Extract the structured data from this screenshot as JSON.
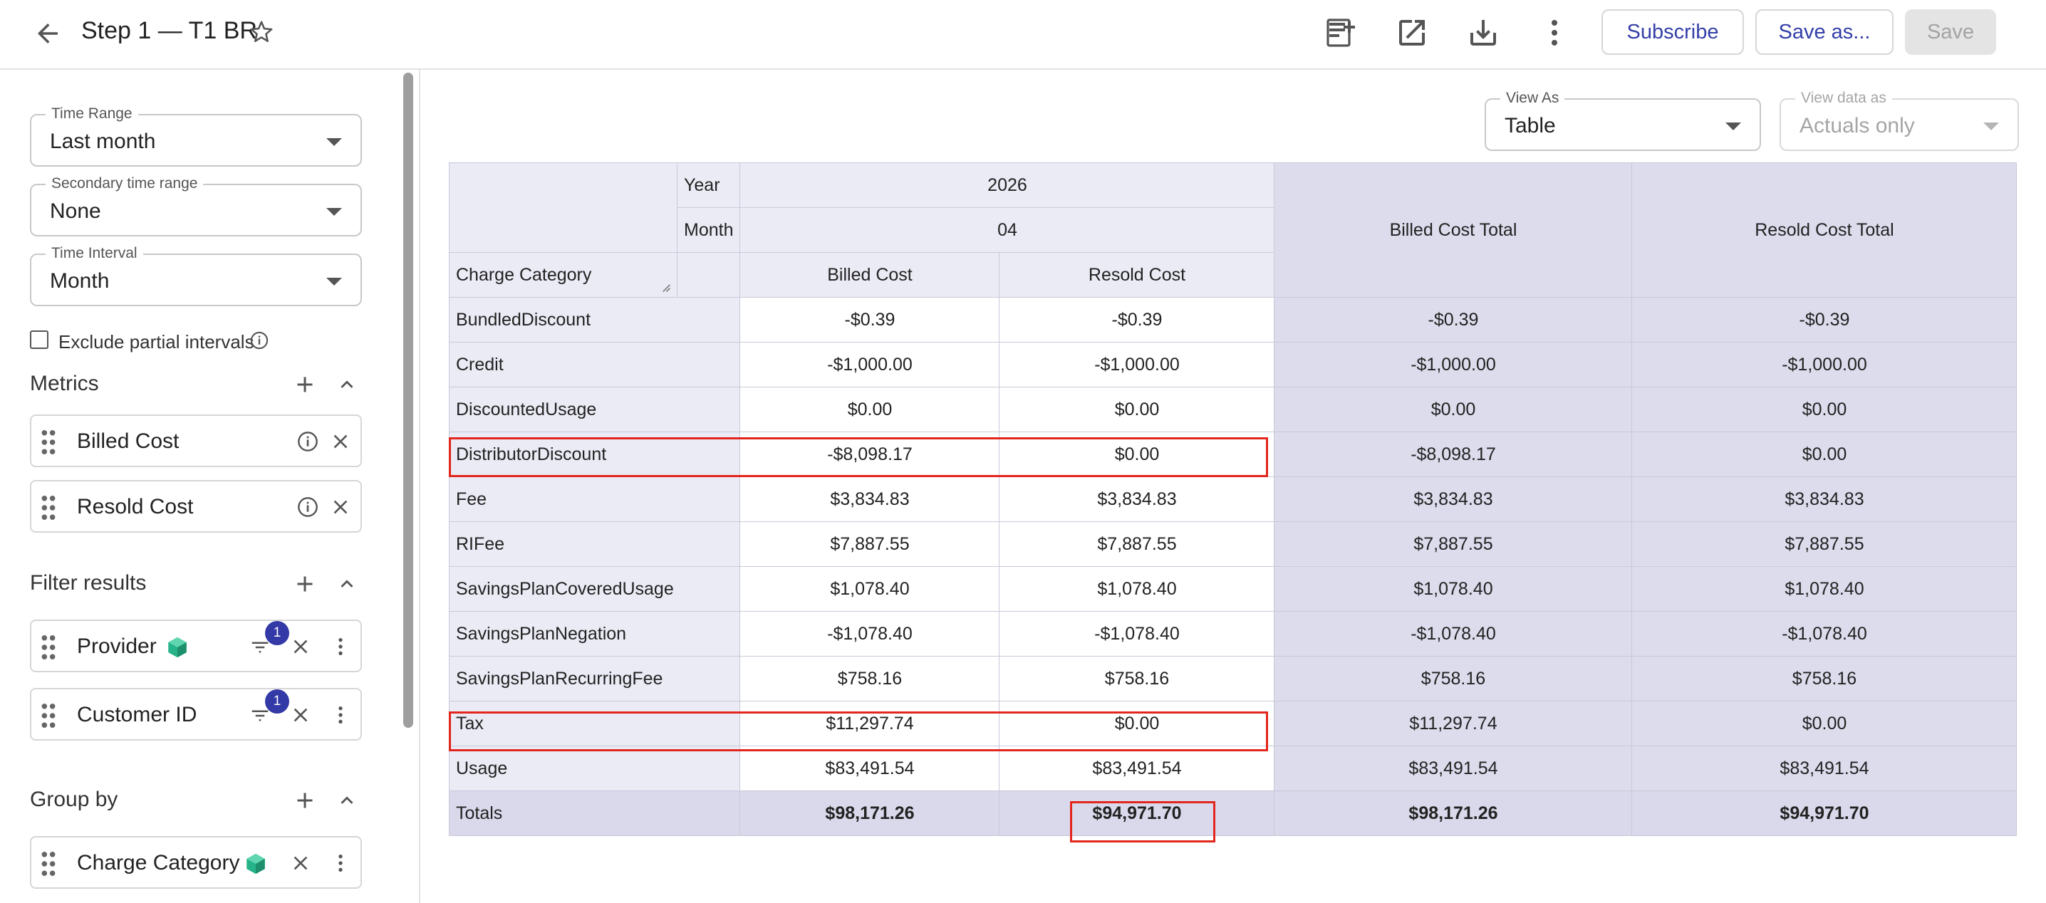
{
  "header": {
    "title": "Step 1 — T1 BR",
    "subscribe_label": "Subscribe",
    "save_as_label": "Save as...",
    "save_label": "Save"
  },
  "filters": {
    "time_range": {
      "label": "Time Range",
      "value": "Last month"
    },
    "secondary_time_range": {
      "label": "Secondary time range",
      "value": "None"
    },
    "time_interval": {
      "label": "Time Interval",
      "value": "Month"
    },
    "exclude_partial_label": "Exclude partial intervals"
  },
  "metrics": {
    "title": "Metrics",
    "items": [
      {
        "label": "Billed Cost"
      },
      {
        "label": "Resold Cost"
      }
    ]
  },
  "filter_results": {
    "title": "Filter results",
    "items": [
      {
        "label": "Provider",
        "count": "1"
      },
      {
        "label": "Customer ID",
        "count": "1"
      }
    ]
  },
  "group_by": {
    "title": "Group by",
    "items": [
      {
        "label": "Charge Category"
      }
    ]
  },
  "view": {
    "view_as": {
      "label": "View As",
      "value": "Table"
    },
    "view_data_as": {
      "label": "View data as",
      "value": "Actuals only"
    }
  },
  "table": {
    "year_label": "Year",
    "year": "2026",
    "month_label": "Month",
    "month": "04",
    "row_header": "Charge Category",
    "col_billed": "Billed Cost",
    "col_resold": "Resold Cost",
    "total_billed": "Billed Cost Total",
    "total_resold": "Resold Cost Total",
    "rows": [
      {
        "category": "BundledDiscount",
        "billed": "-$0.39",
        "resold": "-$0.39",
        "billed_total": "-$0.39",
        "resold_total": "-$0.39"
      },
      {
        "category": "Credit",
        "billed": "-$1,000.00",
        "resold": "-$1,000.00",
        "billed_total": "-$1,000.00",
        "resold_total": "-$1,000.00"
      },
      {
        "category": "DiscountedUsage",
        "billed": "$0.00",
        "resold": "$0.00",
        "billed_total": "$0.00",
        "resold_total": "$0.00"
      },
      {
        "category": "DistributorDiscount",
        "billed": "-$8,098.17",
        "resold": "$0.00",
        "billed_total": "-$8,098.17",
        "resold_total": "$0.00"
      },
      {
        "category": "Fee",
        "billed": "$3,834.83",
        "resold": "$3,834.83",
        "billed_total": "$3,834.83",
        "resold_total": "$3,834.83"
      },
      {
        "category": "RIFee",
        "billed": "$7,887.55",
        "resold": "$7,887.55",
        "billed_total": "$7,887.55",
        "resold_total": "$7,887.55"
      },
      {
        "category": "SavingsPlanCoveredUsage",
        "billed": "$1,078.40",
        "resold": "$1,078.40",
        "billed_total": "$1,078.40",
        "resold_total": "$1,078.40"
      },
      {
        "category": "SavingsPlanNegation",
        "billed": "-$1,078.40",
        "resold": "-$1,078.40",
        "billed_total": "-$1,078.40",
        "resold_total": "-$1,078.40"
      },
      {
        "category": "SavingsPlanRecurringFee",
        "billed": "$758.16",
        "resold": "$758.16",
        "billed_total": "$758.16",
        "resold_total": "$758.16"
      },
      {
        "category": "Tax",
        "billed": "$11,297.74",
        "resold": "$0.00",
        "billed_total": "$11,297.74",
        "resold_total": "$0.00"
      },
      {
        "category": "Usage",
        "billed": "$83,491.54",
        "resold": "$83,491.54",
        "billed_total": "$83,491.54",
        "resold_total": "$83,491.54"
      }
    ],
    "totals": {
      "category": "Totals",
      "billed": "$98,171.26",
      "resold": "$94,971.70",
      "billed_total": "$98,171.26",
      "resold_total": "$94,971.70"
    }
  },
  "colors": {
    "accent": "#3440a8",
    "highlight": "#e3261d",
    "header_bg": "#ebebf6",
    "total_bg": "#dcdced"
  }
}
